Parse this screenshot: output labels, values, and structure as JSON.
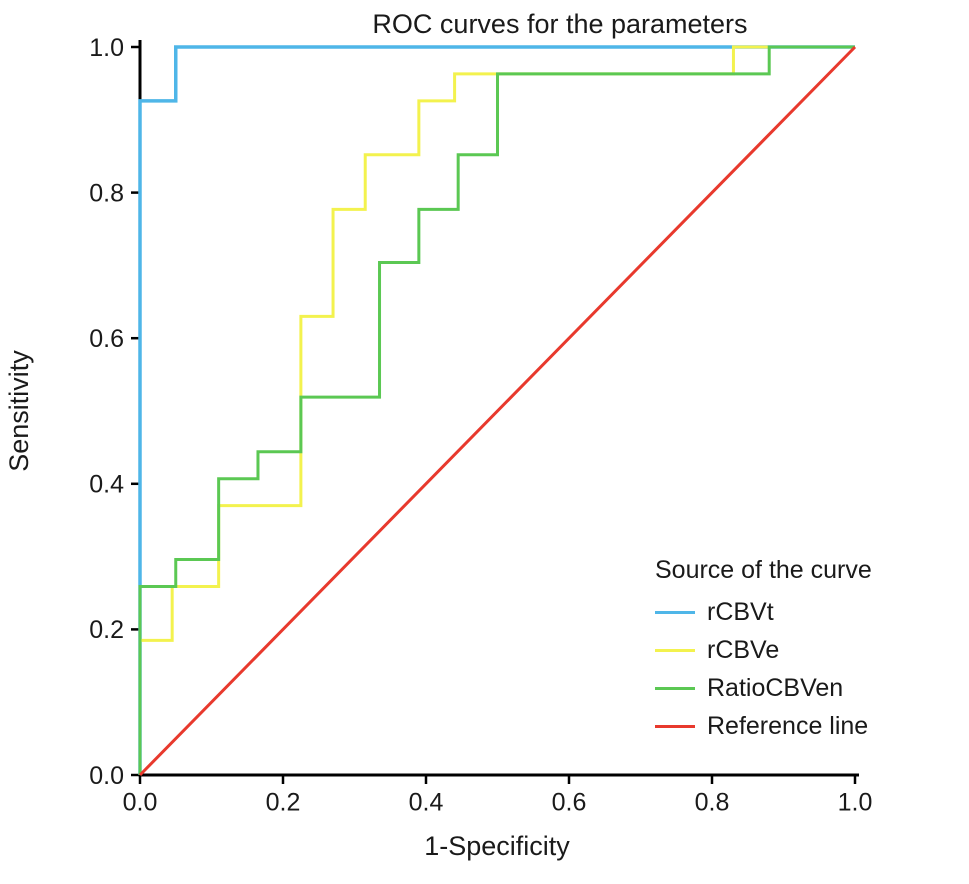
{
  "chart_data": {
    "type": "line",
    "subtype": "roc-step-curves",
    "title": "ROC curves for the parameters",
    "xlabel": "1-Specificity",
    "ylabel": "Sensitivity",
    "xlim": [
      0,
      1
    ],
    "ylim": [
      0,
      1
    ],
    "xticks": [
      0.0,
      0.2,
      0.4,
      0.6,
      0.8,
      1.0
    ],
    "yticks": [
      0.0,
      0.2,
      0.4,
      0.6,
      0.8,
      1.0
    ],
    "xtick_labels": [
      "0.0",
      "0.2",
      "0.4",
      "0.6",
      "0.8",
      "1.0"
    ],
    "ytick_labels": [
      "0.0",
      "0.2",
      "0.4",
      "0.6",
      "0.8",
      "1.0"
    ],
    "grid": false,
    "legend_title": "Source of the curve",
    "legend_position": "lower right",
    "series": [
      {
        "name": "rCBVt",
        "color": "#4fb6e8",
        "width": 3.5,
        "x": [
          0,
          0,
          0.05,
          0.05,
          1
        ],
        "y": [
          0,
          0.926,
          0.926,
          1,
          1
        ]
      },
      {
        "name": "rCBVe",
        "color": "#f3f24e",
        "width": 3,
        "x": [
          0,
          0,
          0.045,
          0.045,
          0.11,
          0.11,
          0.225,
          0.225,
          0.27,
          0.27,
          0.315,
          0.315,
          0.39,
          0.39,
          0.44,
          0.44,
          0.83,
          0.83,
          1
        ],
        "y": [
          0,
          0.185,
          0.185,
          0.259,
          0.259,
          0.37,
          0.37,
          0.63,
          0.63,
          0.777,
          0.777,
          0.852,
          0.852,
          0.926,
          0.926,
          0.963,
          0.963,
          1,
          1
        ]
      },
      {
        "name": "RatioCBVen",
        "color": "#5bc853",
        "width": 3,
        "x": [
          0,
          0,
          0.05,
          0.05,
          0.11,
          0.11,
          0.165,
          0.165,
          0.225,
          0.225,
          0.335,
          0.335,
          0.39,
          0.39,
          0.445,
          0.445,
          0.5,
          0.5,
          0.88,
          0.88,
          1
        ],
        "y": [
          0,
          0.259,
          0.259,
          0.296,
          0.296,
          0.407,
          0.407,
          0.444,
          0.444,
          0.519,
          0.519,
          0.704,
          0.704,
          0.777,
          0.777,
          0.852,
          0.852,
          0.963,
          0.963,
          1,
          1
        ]
      },
      {
        "name": "Reference line",
        "color": "#e8392d",
        "width": 3,
        "x": [
          0,
          1
        ],
        "y": [
          0,
          1
        ]
      }
    ]
  },
  "colors": {
    "axis": "#000000",
    "background": "#ffffff",
    "text": "#1a1a1a"
  }
}
